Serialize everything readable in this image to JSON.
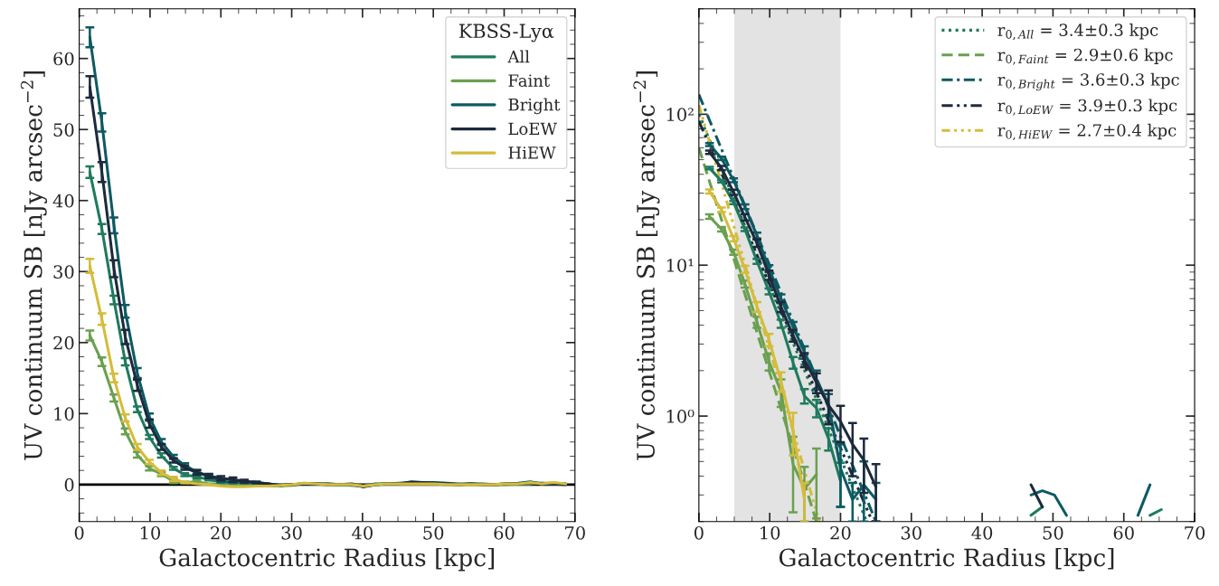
{
  "chart_data": [
    {
      "type": "line",
      "xlabel": "Galactocentric Radius [kpc]",
      "ylabel": "UV continuum SB [nJy arcsec$^{−2}$]",
      "legend_title": "KBSS-Lyα",
      "legend": "top right",
      "grid": false,
      "marker": "none",
      "xlim": [
        0,
        70
      ],
      "ylim": [
        -5.2,
        67
      ],
      "xticks": [
        0,
        10,
        20,
        30,
        40,
        50,
        60,
        70
      ],
      "yticks": [
        0,
        10,
        20,
        30,
        40,
        50,
        60
      ],
      "ref_lines": [
        {
          "axis": "y",
          "value": 0,
          "color": "#000000"
        }
      ],
      "x": [
        1.5,
        3.2,
        4.9,
        6.5,
        8.2,
        9.9,
        11.6,
        13.3,
        14.9,
        16.6,
        18.3,
        20.0,
        21.7,
        23.3,
        25.0,
        26.7,
        28.4,
        30.1,
        31.7,
        33.4,
        35.1,
        36.8,
        38.5,
        40.1,
        41.8,
        43.5,
        45.2,
        46.9,
        48.5,
        50.2,
        51.9,
        53.6,
        55.3,
        56.9,
        58.6,
        60.3,
        62.0,
        63.7,
        65.3,
        67.0,
        68.7
      ],
      "series": [
        {
          "name": "All",
          "color": "#1f7a5e",
          "values": [
            44,
            36,
            26,
            17.3,
            10.6,
            6.7,
            4.1,
            2.3,
            1.4,
            1.1,
            0.7,
            0.4,
            0.2,
            0.1,
            0.1,
            0.1,
            -0.1,
            0.0,
            0.1,
            0.1,
            0.1,
            0.0,
            0.0,
            -0.3,
            0.0,
            0.1,
            0.1,
            0.2,
            0.3,
            0.1,
            0.1,
            0.0,
            0.1,
            0.0,
            0.0,
            0.1,
            0.1,
            0.2,
            0.2,
            0.1,
            0.1
          ],
          "errors": [
            0.8,
            0.7,
            0.6,
            0.5,
            0.4,
            0.3,
            0.3,
            0.2,
            0.2,
            0.2,
            0.1,
            0.1,
            null,
            null,
            null,
            null,
            null,
            null,
            null,
            null,
            null,
            null,
            null,
            null,
            null,
            null,
            null,
            null,
            null,
            null,
            null,
            null,
            null,
            null,
            null,
            null,
            null,
            null,
            null,
            null,
            null
          ]
        },
        {
          "name": "Faint",
          "color": "#6aa050",
          "values": [
            21,
            17.3,
            12.2,
            7.5,
            4.2,
            2.3,
            1.5,
            0.5,
            0.3,
            0.4,
            0.1,
            0.1,
            0.0,
            -0.1,
            -0.2,
            -0.2,
            -0.2,
            -0.1,
            0.2,
            0.1,
            0.0,
            0.0,
            0.0,
            -0.2,
            0.0,
            0.1,
            0.1,
            0.1,
            0.1,
            0.1,
            0.0,
            0.0,
            0.0,
            0.0,
            0.0,
            0.0,
            0.1,
            0.1,
            0.2,
            0.2,
            0.1
          ],
          "errors": [
            0.7,
            0.6,
            0.5,
            0.4,
            0.4,
            0.3,
            0.3,
            0.3,
            0.1,
            0.2,
            null,
            null,
            null,
            null,
            null,
            null,
            null,
            null,
            null,
            null,
            null,
            null,
            null,
            null,
            null,
            null,
            null,
            null,
            null,
            null,
            null,
            null,
            null,
            null,
            null,
            null,
            null,
            null,
            null,
            null,
            null
          ]
        },
        {
          "name": "Bright",
          "color": "#0d5a62",
          "values": [
            63,
            51,
            36.5,
            24.4,
            15.7,
            9.5,
            6.0,
            3.9,
            2.7,
            1.8,
            1.2,
            0.5,
            0.3,
            0.4,
            0.3,
            0.1,
            -0.1,
            0.0,
            0.1,
            0.1,
            0.1,
            0.0,
            -0.1,
            -0.2,
            0.1,
            0.1,
            0.2,
            0.3,
            0.3,
            0.3,
            0.2,
            0.1,
            0.1,
            0.1,
            0.0,
            0.1,
            0.2,
            0.4,
            0.1,
            0.1,
            0.1
          ],
          "errors": [
            1.4,
            1.3,
            1.1,
            0.9,
            0.7,
            0.5,
            0.4,
            0.3,
            0.3,
            0.3,
            0.2,
            0.2,
            0.1,
            0.2,
            0.1,
            null,
            null,
            null,
            null,
            null,
            null,
            null,
            null,
            null,
            null,
            null,
            null,
            null,
            null,
            null,
            null,
            null,
            null,
            null,
            null,
            null,
            null,
            null,
            null,
            null,
            null
          ]
        },
        {
          "name": "LoEW",
          "color": "#1c2a3c",
          "values": [
            56,
            44,
            30.4,
            20.8,
            14.0,
            8.6,
            5.3,
            3.4,
            2.4,
            1.7,
            1.2,
            0.9,
            0.7,
            0.5,
            0.3,
            0.1,
            -0.1,
            0.0,
            0.1,
            0.1,
            0.0,
            0.0,
            0.1,
            -0.3,
            0.0,
            0.1,
            0.1,
            0.4,
            0.3,
            0.2,
            0.1,
            0.0,
            0.1,
            0.0,
            0.0,
            0.1,
            0.1,
            0.3,
            0.1,
            0.1,
            0.0
          ],
          "errors": [
            1.5,
            1.4,
            1.2,
            1.0,
            0.8,
            0.6,
            0.4,
            0.3,
            0.3,
            0.3,
            0.3,
            0.3,
            0.3,
            0.2,
            0.1,
            null,
            null,
            null,
            null,
            null,
            null,
            null,
            null,
            null,
            null,
            null,
            null,
            null,
            null,
            null,
            null,
            null,
            null,
            null,
            null,
            null,
            null,
            null,
            null,
            null,
            null
          ]
        },
        {
          "name": "HiEW",
          "color": "#d4bc3c",
          "values": [
            30.8,
            23.3,
            15,
            9.4,
            5.3,
            3.2,
            1.7,
            0.8,
            0.3,
            0.1,
            0.0,
            -0.2,
            -0.3,
            -0.3,
            -0.2,
            -0.2,
            -0.1,
            0.0,
            0.2,
            0.1,
            0.0,
            0.0,
            0.0,
            -0.2,
            0.0,
            0.1,
            0.1,
            0.1,
            0.1,
            0.1,
            0.0,
            0.0,
            0.0,
            0.0,
            0.0,
            0.1,
            0.1,
            0.3,
            0.1,
            0.3,
            0.1
          ],
          "errors": [
            1.0,
            0.8,
            0.6,
            0.5,
            0.4,
            0.3,
            0.3,
            0.3,
            0.1,
            null,
            null,
            null,
            null,
            null,
            null,
            null,
            null,
            null,
            null,
            null,
            null,
            null,
            null,
            null,
            null,
            null,
            null,
            null,
            null,
            null,
            null,
            null,
            null,
            null,
            null,
            null,
            null,
            null,
            null,
            null,
            null
          ]
        }
      ]
    },
    {
      "type": "line",
      "xlabel": "Galactocentric Radius [kpc]",
      "ylabel": "UV continuum SB [nJy arcsec$^{−2}$]",
      "legend": "top right",
      "grid": false,
      "marker": "none",
      "log": "y",
      "xlim": [
        0,
        70
      ],
      "ylim": [
        0.2,
        500
      ],
      "xticks": [
        0,
        10,
        20,
        30,
        40,
        50,
        60,
        70
      ],
      "yticks": [
        {
          "value": 1,
          "label": "10⁰"
        },
        {
          "value": 10,
          "label": "10¹"
        },
        {
          "value": 100,
          "label": "10²"
        }
      ],
      "bands": [
        {
          "axis": "x",
          "from": 5,
          "to": 20,
          "color": "#e3e3e3"
        }
      ],
      "x": [
        1.5,
        3.2,
        4.9,
        6.5,
        8.2,
        9.9,
        11.6,
        13.3,
        14.9,
        16.6,
        18.3,
        20.0,
        21.7,
        23.3,
        25.0,
        26.7,
        28.4,
        30.1,
        31.7,
        33.4,
        35.1,
        36.8,
        38.5,
        40.1,
        41.8,
        43.5,
        45.2,
        46.9,
        48.5,
        50.2,
        51.9,
        53.6,
        55.3,
        56.9,
        58.6,
        60.3,
        62.0,
        63.7,
        65.3
      ],
      "series": [
        {
          "color": "#1f7a5e",
          "values": [
            44,
            36,
            26,
            17.3,
            10.6,
            6.7,
            4.1,
            2.26,
            1.36,
            1.13,
            0.71,
            0.37,
            null,
            null,
            null,
            null,
            null,
            null,
            null,
            null,
            null,
            null,
            null,
            null,
            null,
            null,
            null,
            0.22,
            0.25,
            null,
            null,
            null,
            null,
            null,
            null,
            null,
            null,
            0.22,
            0.24
          ],
          "errors": [
            0.8,
            0.7,
            0.6,
            0.5,
            0.4,
            0.3,
            0.25,
            0.2,
            0.15,
            0.15,
            0.12,
            0.12,
            null,
            null,
            null,
            null,
            null,
            null,
            null,
            null,
            null,
            null,
            null,
            null,
            null,
            null,
            null,
            null,
            null,
            null,
            null,
            null,
            null,
            null,
            null,
            null,
            null,
            null,
            null
          ]
        },
        {
          "color": "#6aa050",
          "values": [
            21,
            17.3,
            12.2,
            7.5,
            4.2,
            2.3,
            1.45,
            0.48,
            0.33,
            0.41,
            null,
            null,
            null,
            null,
            null,
            null,
            null,
            null,
            null,
            null,
            null,
            null,
            null,
            null,
            null,
            null,
            null,
            null,
            null,
            null,
            null,
            null,
            null,
            null,
            null,
            null,
            null,
            null,
            null
          ],
          "errors": [
            0.7,
            0.6,
            0.5,
            0.4,
            0.35,
            0.3,
            0.3,
            0.25,
            0.13,
            0.2,
            null,
            null,
            null,
            null,
            null,
            null,
            null,
            null,
            null,
            null,
            null,
            null,
            null,
            null,
            null,
            null,
            null,
            null,
            null,
            null,
            null,
            null,
            null,
            null,
            null,
            null,
            null,
            null,
            null
          ]
        },
        {
          "color": "#0d5a62",
          "values": [
            63,
            51,
            36.5,
            24.4,
            15.7,
            9.5,
            6.0,
            3.9,
            2.65,
            1.75,
            1.2,
            0.45,
            0.28,
            0.35,
            0.28,
            null,
            null,
            null,
            null,
            null,
            null,
            null,
            null,
            null,
            null,
            null,
            null,
            0.3,
            0.32,
            0.3,
            0.22,
            null,
            null,
            null,
            null,
            null,
            0.22,
            0.35,
            null
          ],
          "errors": [
            1.4,
            1.3,
            1.1,
            0.9,
            0.7,
            0.5,
            0.4,
            0.3,
            0.25,
            0.25,
            0.2,
            0.2,
            0.08,
            0.15,
            0.08,
            null,
            null,
            null,
            null,
            null,
            null,
            null,
            null,
            null,
            null,
            null,
            null,
            null,
            null,
            null,
            null,
            null,
            null,
            null,
            null,
            null,
            null,
            null,
            null
          ]
        },
        {
          "color": "#1c2a3c",
          "values": [
            56,
            44,
            30.4,
            20.8,
            14.0,
            8.6,
            5.3,
            3.42,
            2.36,
            1.67,
            1.18,
            0.92,
            0.65,
            0.51,
            0.34,
            null,
            null,
            null,
            null,
            null,
            null,
            null,
            null,
            null,
            null,
            null,
            null,
            0.35,
            0.25,
            null,
            null,
            null,
            null,
            null,
            null,
            null,
            null,
            null,
            null
          ],
          "errors": [
            1.5,
            1.4,
            1.2,
            1.0,
            0.8,
            0.6,
            0.4,
            0.3,
            0.25,
            0.25,
            0.3,
            0.25,
            0.25,
            0.2,
            0.14,
            null,
            null,
            null,
            null,
            null,
            null,
            null,
            null,
            null,
            null,
            null,
            null,
            null,
            null,
            null,
            null,
            null,
            null,
            null,
            null,
            null,
            null,
            null,
            null
          ]
        },
        {
          "color": "#d4bc3c",
          "values": [
            30.8,
            23.3,
            15,
            9.4,
            5.3,
            3.2,
            1.7,
            0.8,
            0.28,
            null,
            null,
            null,
            null,
            null,
            null,
            null,
            null,
            null,
            null,
            null,
            null,
            null,
            null,
            null,
            null,
            null,
            null,
            null,
            null,
            null,
            null,
            null,
            null,
            null,
            null,
            null,
            null,
            null,
            null
          ],
          "errors": [
            1.0,
            0.8,
            0.6,
            0.5,
            0.4,
            0.3,
            0.25,
            0.25,
            0.08,
            null,
            null,
            null,
            null,
            null,
            null,
            null,
            null,
            null,
            null,
            null,
            null,
            null,
            null,
            null,
            null,
            null,
            null,
            null,
            null,
            null,
            null,
            null,
            null,
            null,
            null,
            null,
            null,
            null,
            null
          ]
        },
        {
          "name": "r$_{0,All}$ = 3.4±0.3 kpc",
          "color": "#1f7a5e",
          "line_style": "dotted",
          "x": [
            0,
            23.7
          ],
          "values": [
            100,
            0.2
          ]
        },
        {
          "name": "r$_{0,Faint}$ = 2.9±0.6 kpc",
          "color": "#6aa050",
          "line_style": "dashed",
          "x": [
            0,
            16.6
          ],
          "values": [
            60,
            0.2
          ]
        },
        {
          "name": "r$_{0,Bright}$ = 3.6±0.3 kpc",
          "color": "#0d5a62",
          "line_style": "dashdot",
          "x": [
            0,
            25.0
          ],
          "values": [
            135,
            0.2
          ]
        },
        {
          "name": "r$_{0,LoEW}$ = 3.9±0.3 kpc",
          "color": "#1c2a3c",
          "line_style": "dashdotdot",
          "x": [
            0,
            24.5
          ],
          "values": [
            90,
            0.2
          ]
        },
        {
          "name": "r$_{0,HiEW}$ = 2.7±0.4 kpc",
          "color": "#d4bc3c",
          "line_style": "dashdotdotdot",
          "x": [
            0,
            17.0
          ],
          "values": [
            115,
            0.2
          ]
        }
      ]
    }
  ]
}
